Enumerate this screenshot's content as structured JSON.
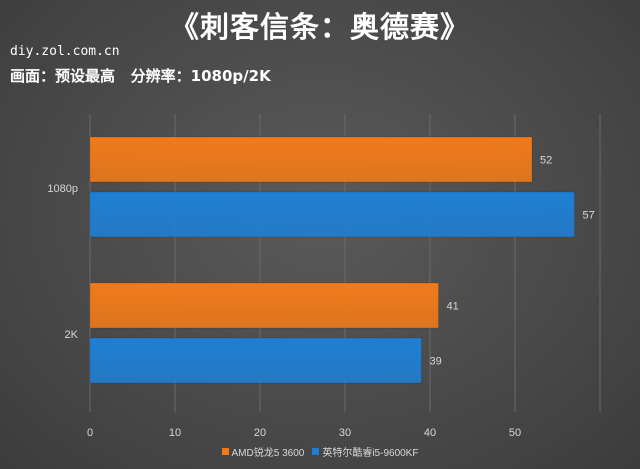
{
  "header": {
    "title": "《刺客信条：奥德赛》",
    "source": "diy.zol.com.cn",
    "subtitle": "画面：预设最高   分辨率：1080p/2K"
  },
  "colors": {
    "series_1": "#f07a1a",
    "series_2": "#1f7fd4",
    "background": "#4a4a4a",
    "axis_text": "#d8d8d8"
  },
  "chart_data": {
    "type": "bar",
    "orientation": "horizontal",
    "categories": [
      "1080p",
      "2K"
    ],
    "series": [
      {
        "name": "AMD锐龙5 3600",
        "values": [
          52,
          41
        ]
      },
      {
        "name": "英特尔酷睿i5-9600KF",
        "values": [
          57,
          39
        ]
      }
    ],
    "xlim": [
      0,
      60
    ],
    "xticks": [
      "0",
      "10",
      "20",
      "30",
      "40",
      "50"
    ],
    "grid": true,
    "legend_position": "bottom",
    "data_labels": true
  }
}
